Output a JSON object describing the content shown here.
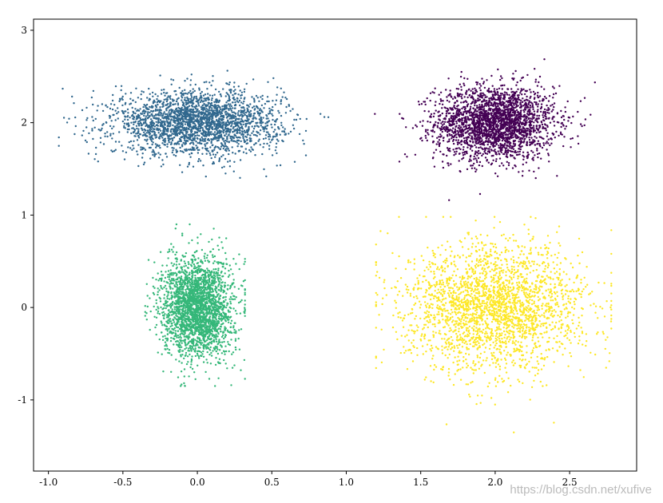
{
  "chart_data": {
    "type": "scatter",
    "title": "",
    "xlabel": "",
    "ylabel": "",
    "xlim": [
      -1.1,
      2.95
    ],
    "ylim": [
      -1.77,
      3.12
    ],
    "x_ticks": [
      "-1.0",
      "-0.5",
      "0.0",
      "0.5",
      "1.0",
      "1.5",
      "2.0",
      "2.5"
    ],
    "y_ticks": [
      "3",
      "2",
      "1",
      "0",
      "-1"
    ],
    "grid": false,
    "legend": "none",
    "colormap": "viridis",
    "series": [
      {
        "color": "#440154",
        "center": [
          2.0,
          2.0
        ],
        "spread": [
          0.2,
          0.2
        ],
        "count": 2500,
        "x_range": [
          1.13,
          2.67
        ],
        "y_range": [
          1.0,
          2.9
        ]
      },
      {
        "color": "#31688e",
        "center": [
          0.0,
          2.0
        ],
        "spread": [
          0.28,
          0.17
        ],
        "count": 2500,
        "x_range": [
          -0.93,
          0.88
        ],
        "y_range": [
          1.32,
          2.7
        ]
      },
      {
        "color": "#35b779",
        "center": [
          0.0,
          0.0
        ],
        "spread": [
          0.12,
          0.27
        ],
        "count": 2500,
        "x_range": [
          -0.35,
          0.32
        ],
        "y_range": [
          -0.85,
          0.9
        ]
      },
      {
        "color": "#fde725",
        "center": [
          2.0,
          0.0
        ],
        "spread": [
          0.3,
          0.34
        ],
        "count": 2500,
        "x_range": [
          1.2,
          2.78
        ],
        "y_range": [
          -1.52,
          0.98
        ]
      }
    ]
  },
  "watermark": "https://blog.csdn.net/xufive"
}
